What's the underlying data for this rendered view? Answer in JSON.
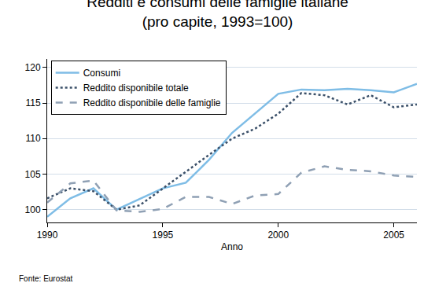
{
  "chart_data": {
    "type": "line",
    "title": "Redditi e consumi delle famiglie italiane",
    "subtitle": "(pro capite, 1993=100)",
    "x_label": "Anno",
    "source": "Fonte: Eurostat",
    "x": [
      1990,
      1991,
      1992,
      1993,
      1994,
      1995,
      1996,
      1997,
      1998,
      1999,
      2000,
      2001,
      2002,
      2003,
      2004,
      2005,
      2006
    ],
    "series": [
      {
        "name": "Consumi",
        "color": "#7fbde6",
        "line_style": "solid",
        "values": [
          99,
          101.6,
          103,
          100,
          101.5,
          103,
          103.8,
          107,
          110.8,
          113.5,
          116.3,
          116.9,
          116.8,
          117,
          116.8,
          116.5,
          117.7
        ]
      },
      {
        "name": "Reddito disponibile totale",
        "color": "#3b5069",
        "line_style": "dot",
        "values": [
          101.6,
          103,
          102.6,
          100,
          100.6,
          103,
          105.3,
          107.7,
          110,
          111.4,
          113.5,
          116.4,
          116.1,
          114.8,
          116.1,
          114.4,
          114.8
        ]
      },
      {
        "name": "Reddito disponibile delle famiglie",
        "color": "#8fa0b4",
        "line_style": "dash",
        "values": [
          101,
          103.7,
          104.1,
          99.9,
          99.7,
          100.1,
          101.8,
          101.8,
          100.8,
          102,
          102.2,
          105.2,
          106.1,
          105.6,
          105.4,
          104.8,
          104.6
        ]
      }
    ],
    "xlim": [
      1990,
      2006
    ],
    "xticks": [
      1990,
      1995,
      2000,
      2005
    ],
    "ylim": [
      98.2,
      121.2
    ],
    "yticks": [
      100,
      105,
      110,
      115,
      120
    ],
    "grid": true,
    "legend": "top-left"
  }
}
